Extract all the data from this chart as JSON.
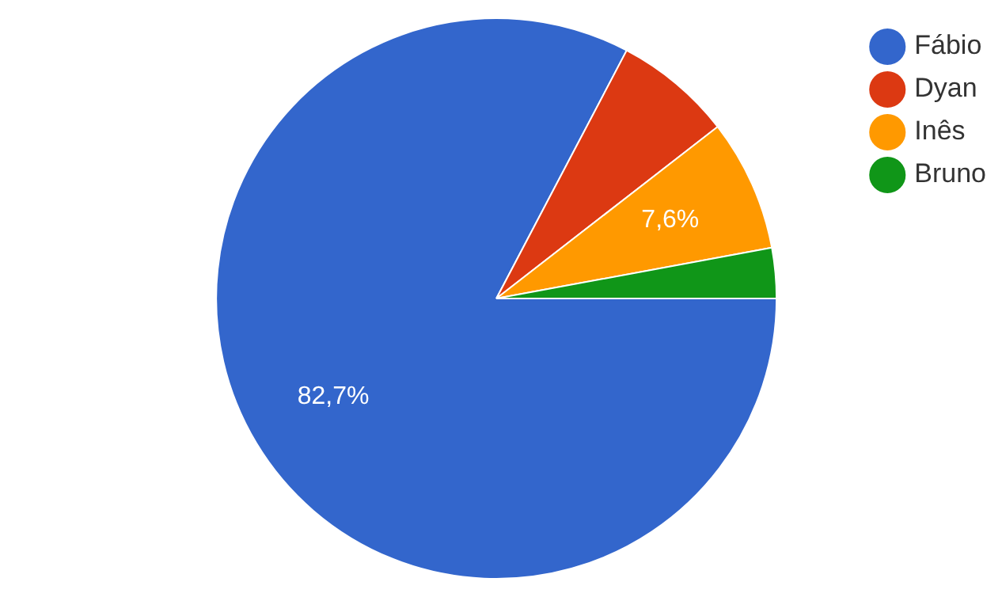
{
  "chart_data": {
    "type": "pie",
    "categories": [
      "Fábio",
      "Dyan",
      "Inês",
      "Bruno"
    ],
    "values": [
      82.7,
      6.8,
      7.6,
      2.9
    ],
    "colors": [
      "#3366cc",
      "#dc3912",
      "#ff9900",
      "#109618"
    ],
    "value_labels": [
      "82,7%",
      null,
      "7,6%",
      null
    ],
    "legend": "top right"
  }
}
